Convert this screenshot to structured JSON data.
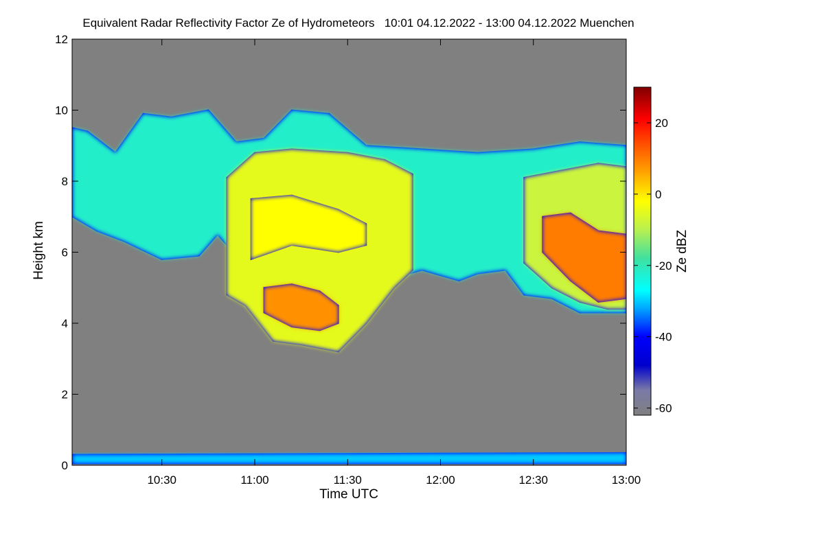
{
  "chart_data": {
    "type": "heatmap",
    "title": "Equivalent Radar Reflectivity Factor Ze of Hydrometeors   10:01 04.12.2022 - 13:00 04.12.2022 Muenchen",
    "xlabel": "Time UTC",
    "ylabel": "Height km",
    "xlim": [
      10.0167,
      13.0
    ],
    "ylim": [
      0,
      12
    ],
    "xticks": [
      {
        "value": 10.5,
        "label": "10:30"
      },
      {
        "value": 11.0,
        "label": "11:00"
      },
      {
        "value": 11.5,
        "label": "11:30"
      },
      {
        "value": 12.0,
        "label": "12:00"
      },
      {
        "value": 12.5,
        "label": "12:30"
      },
      {
        "value": 13.0,
        "label": "13:00"
      }
    ],
    "yticks": [
      0,
      2,
      4,
      6,
      8,
      10,
      12
    ],
    "colorbar": {
      "label": "Ze dBZ",
      "range": [
        -62,
        30
      ],
      "ticks": [
        20,
        0,
        -20,
        -40,
        -60
      ],
      "stops": [
        {
          "value": -62,
          "color": "#808080"
        },
        {
          "value": -55,
          "color": "#7a7aa8"
        },
        {
          "value": -48,
          "color": "#0000cc"
        },
        {
          "value": -40,
          "color": "#0000ff"
        },
        {
          "value": -32,
          "color": "#00a8ff"
        },
        {
          "value": -27,
          "color": "#00ffff"
        },
        {
          "value": -18,
          "color": "#40e0a0"
        },
        {
          "value": -10,
          "color": "#b8f050"
        },
        {
          "value": -2,
          "color": "#ffff00"
        },
        {
          "value": 6,
          "color": "#ffa500"
        },
        {
          "value": 14,
          "color": "#ff5000"
        },
        {
          "value": 21,
          "color": "#ff0000"
        },
        {
          "value": 30,
          "color": "#800000"
        }
      ]
    },
    "background_color": "#808080",
    "regions": [
      {
        "name": "cirrus-layer",
        "ze_dbz": -22,
        "top_km": [
          [
            10.02,
            9.5
          ],
          [
            10.1,
            9.4
          ],
          [
            10.25,
            8.8
          ],
          [
            10.4,
            9.9
          ],
          [
            10.55,
            9.8
          ],
          [
            10.75,
            10.0
          ],
          [
            10.9,
            9.1
          ],
          [
            11.05,
            9.2
          ],
          [
            11.2,
            10.0
          ],
          [
            11.4,
            9.9
          ],
          [
            11.6,
            9.0
          ],
          [
            11.9,
            8.9
          ],
          [
            12.2,
            8.8
          ],
          [
            12.5,
            8.9
          ],
          [
            12.75,
            9.1
          ],
          [
            13.0,
            9.0
          ]
        ],
        "bottom_km": [
          [
            10.02,
            7.0
          ],
          [
            10.15,
            6.6
          ],
          [
            10.3,
            6.3
          ],
          [
            10.5,
            5.8
          ],
          [
            10.7,
            5.9
          ],
          [
            10.8,
            6.5
          ],
          [
            10.9,
            5.9
          ],
          [
            11.0,
            5.5
          ],
          [
            11.2,
            5.6
          ],
          [
            11.5,
            5.8
          ],
          [
            11.7,
            5.2
          ],
          [
            11.9,
            5.5
          ],
          [
            12.1,
            5.2
          ],
          [
            12.2,
            5.4
          ],
          [
            12.35,
            5.5
          ],
          [
            12.45,
            4.8
          ],
          [
            12.6,
            4.7
          ],
          [
            12.75,
            4.3
          ],
          [
            12.9,
            4.3
          ],
          [
            13.0,
            4.3
          ]
        ]
      },
      {
        "name": "main-precip-cell",
        "ze_dbz": -5,
        "top_km": [
          [
            10.85,
            8.1
          ],
          [
            11.0,
            8.8
          ],
          [
            11.2,
            8.9
          ],
          [
            11.5,
            8.8
          ],
          [
            11.7,
            8.6
          ],
          [
            11.85,
            8.2
          ]
        ],
        "bottom_km": [
          [
            10.85,
            4.8
          ],
          [
            10.95,
            4.5
          ],
          [
            11.1,
            3.5
          ],
          [
            11.25,
            3.4
          ],
          [
            11.45,
            3.2
          ],
          [
            11.6,
            4.0
          ],
          [
            11.75,
            5.0
          ],
          [
            11.85,
            5.5
          ]
        ]
      },
      {
        "name": "lower-core",
        "ze_dbz": 8,
        "top_km": [
          [
            11.05,
            5.0
          ],
          [
            11.2,
            5.1
          ],
          [
            11.35,
            4.9
          ],
          [
            11.45,
            4.5
          ]
        ],
        "bottom_km": [
          [
            11.05,
            4.3
          ],
          [
            11.2,
            3.9
          ],
          [
            11.35,
            3.8
          ],
          [
            11.45,
            4.0
          ]
        ]
      },
      {
        "name": "upper-core",
        "ze_dbz": -2,
        "top_km": [
          [
            10.98,
            7.5
          ],
          [
            11.2,
            7.6
          ],
          [
            11.45,
            7.2
          ],
          [
            11.6,
            6.8
          ]
        ],
        "bottom_km": [
          [
            10.98,
            5.8
          ],
          [
            11.2,
            6.2
          ],
          [
            11.45,
            6.0
          ],
          [
            11.6,
            6.2
          ]
        ]
      },
      {
        "name": "east-cell",
        "ze_dbz": -8,
        "top_km": [
          [
            12.45,
            8.1
          ],
          [
            12.65,
            8.3
          ],
          [
            12.85,
            8.5
          ],
          [
            13.0,
            8.4
          ]
        ],
        "bottom_km": [
          [
            12.45,
            5.7
          ],
          [
            12.6,
            5.0
          ],
          [
            12.75,
            4.6
          ],
          [
            12.9,
            4.4
          ],
          [
            13.0,
            4.4
          ]
        ]
      },
      {
        "name": "east-core",
        "ze_dbz": 10,
        "top_km": [
          [
            12.55,
            7.0
          ],
          [
            12.7,
            7.1
          ],
          [
            12.85,
            6.6
          ],
          [
            13.0,
            6.5
          ]
        ],
        "bottom_km": [
          [
            12.55,
            6.0
          ],
          [
            12.7,
            5.2
          ],
          [
            12.85,
            4.6
          ],
          [
            13.0,
            4.7
          ]
        ]
      },
      {
        "name": "ground-clutter",
        "ze_dbz": -30,
        "top_km": [
          [
            10.02,
            0.3
          ],
          [
            13.0,
            0.35
          ]
        ],
        "bottom_km": [
          [
            10.02,
            0.05
          ],
          [
            13.0,
            0.05
          ]
        ]
      }
    ]
  }
}
